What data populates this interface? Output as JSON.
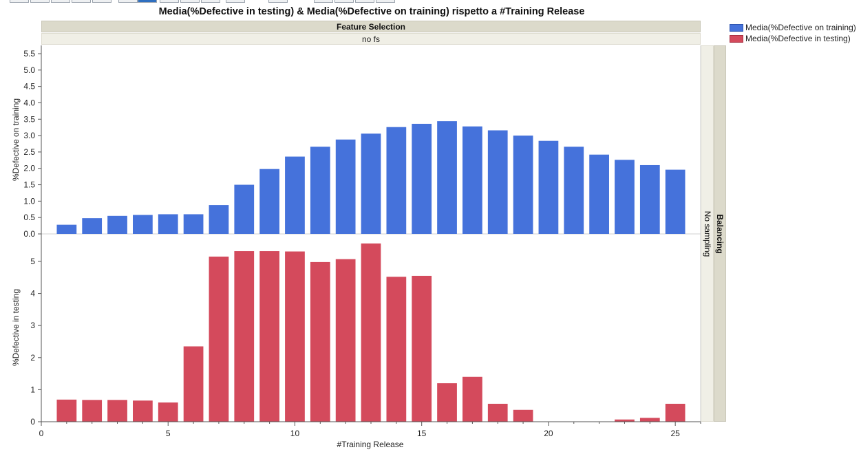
{
  "chart_data": {
    "type": "bar",
    "title": "Media(%Defective in testing) & Media(%Defective on training) rispetto a #Training Release",
    "panel_column_label": "Feature Selection",
    "panel_column_value": "no fs",
    "panel_row_label": "Balancing",
    "panel_row_value": "No sampling",
    "xlabel": "#Training Release",
    "x": [
      1,
      2,
      3,
      4,
      5,
      6,
      7,
      8,
      9,
      10,
      11,
      12,
      13,
      14,
      15,
      16,
      17,
      18,
      19,
      20,
      21,
      22,
      23,
      24,
      25
    ],
    "xlim": [
      0,
      26
    ],
    "xticks": [
      "0",
      "5",
      "10",
      "15",
      "20",
      "25"
    ],
    "legend": {
      "position": "top-right",
      "entries": [
        "Media(%Defective on training)",
        "Media(%Defective in testing)"
      ]
    },
    "series": [
      {
        "name": "Media(%Defective on training)",
        "ylabel": "%Defective on training",
        "color": "#4572db",
        "ylim": [
          0,
          5.5
        ],
        "yticks": [
          "0.0",
          "0.5",
          "1.0",
          "1.5",
          "2.0",
          "2.5",
          "3.0",
          "3.5",
          "4.0",
          "4.5",
          "5.0",
          "5.5"
        ],
        "values": [
          0.28,
          0.48,
          0.55,
          0.58,
          0.6,
          0.6,
          0.88,
          1.5,
          1.98,
          2.36,
          2.66,
          2.88,
          3.06,
          3.26,
          3.36,
          3.44,
          3.28,
          3.16,
          3.0,
          2.84,
          2.66,
          2.42,
          2.26,
          2.1,
          1.96
        ]
      },
      {
        "name": "Media(%Defective in testing)",
        "ylabel": "%Defective in testing",
        "color": "#d44a5c",
        "ylim": [
          0,
          5.6
        ],
        "yticks": [
          "0",
          "1",
          "2",
          "3",
          "4",
          "5"
        ],
        "values": [
          0.69,
          0.68,
          0.68,
          0.66,
          0.6,
          2.35,
          5.15,
          5.32,
          5.32,
          5.31,
          4.98,
          5.07,
          5.56,
          4.52,
          4.55,
          1.2,
          1.4,
          0.56,
          0.37,
          0.0,
          0.0,
          0.0,
          0.07,
          0.12,
          0.56
        ]
      }
    ]
  }
}
